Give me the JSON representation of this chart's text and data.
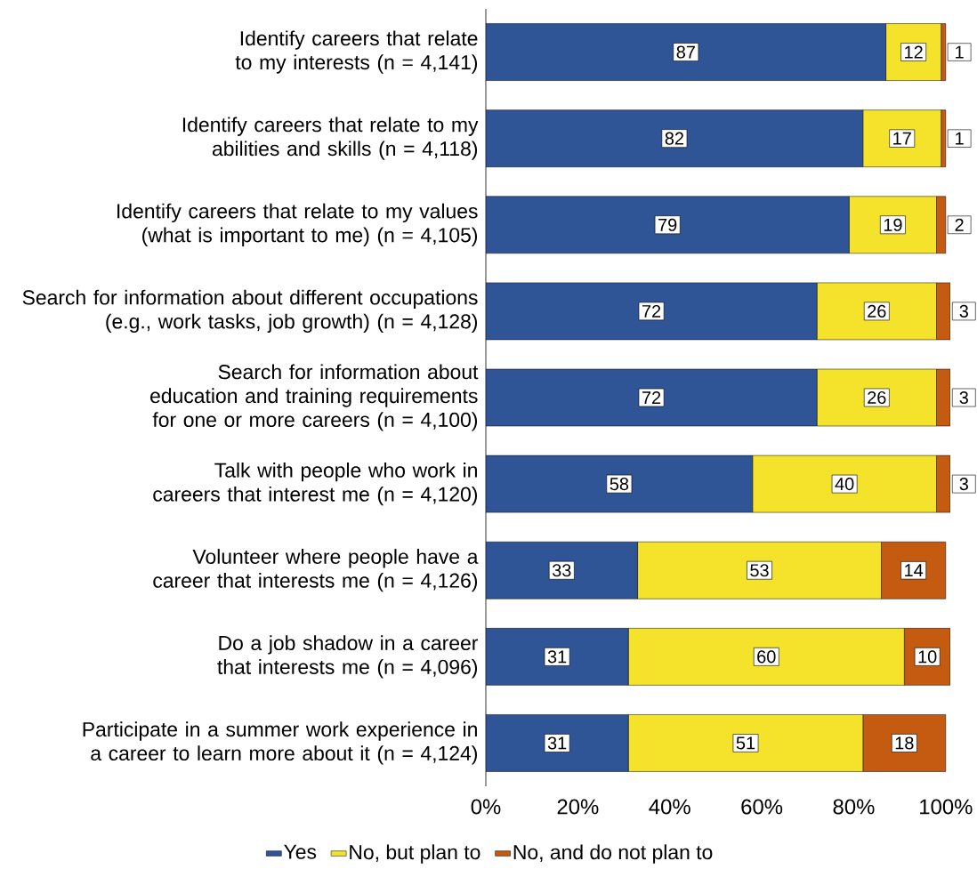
{
  "chart_data": {
    "type": "bar",
    "orientation": "horizontal",
    "stacked": true,
    "data_labels": true,
    "legend": "bottom",
    "grid": false,
    "categories": [
      "Identify careers that relate to my interests (n = 4,141)",
      "Identify careers that relate to my abilities and skills (n = 4,118)",
      "Identify careers that relate to my values (what is important to me) (n = 4,105)",
      "Search for information about different occupations (e.g., work tasks, job growth) (n = 4,128)",
      "Search for information about education and training requirements for one or more careers (n = 4,100)",
      "Talk with people who work in careers that interest me (n = 4,120)",
      "Volunteer where people have a career that interests me (n = 4,126)",
      "Do a job shadow in a career that interests me (n = 4,096)",
      "Participate in a summer work experience in a career to learn more about it (n = 4,124)"
    ],
    "series": [
      {
        "name": "Yes",
        "color": "#2f5597",
        "values": [
          87,
          82,
          79,
          72,
          72,
          58,
          33,
          31,
          31
        ]
      },
      {
        "name": "No, but plan to",
        "color": "#f5e22b",
        "values": [
          12,
          17,
          19,
          26,
          26,
          40,
          53,
          60,
          51
        ]
      },
      {
        "name": "No, and do not plan to",
        "color": "#c55a11",
        "values": [
          1,
          1,
          2,
          3,
          3,
          3,
          14,
          10,
          18
        ]
      }
    ],
    "xlim": [
      0,
      101
    ],
    "xticks": [
      {
        "value": 0,
        "label": "0%"
      },
      {
        "value": 20,
        "label": "20%"
      },
      {
        "value": 40,
        "label": "40%"
      },
      {
        "value": 60,
        "label": "60%"
      },
      {
        "value": 80,
        "label": "80%"
      },
      {
        "value": 100,
        "label": "100%"
      }
    ]
  }
}
